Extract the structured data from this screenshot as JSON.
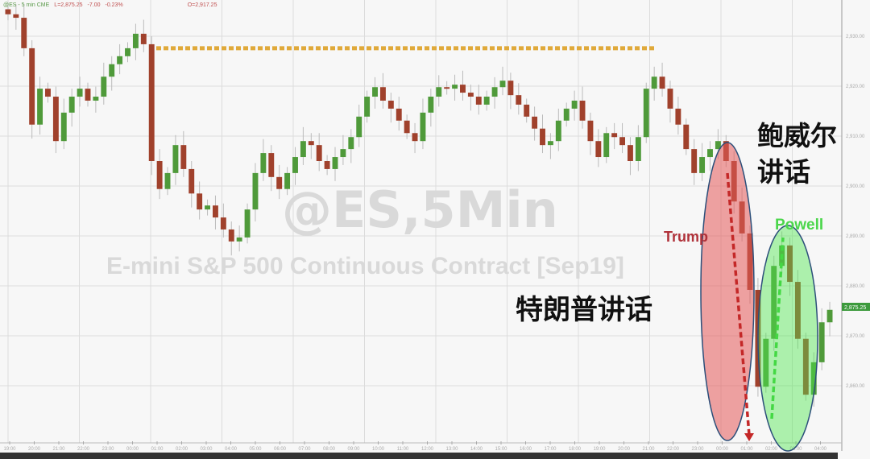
{
  "header": {
    "symbol": "@ES - 5 min CME",
    "last": "L=2,875.25",
    "change": "-7.00",
    "change_pct": "-0.23%",
    "open": "O=2,917.25"
  },
  "watermark": {
    "line1": "@ES,5Min",
    "line2": "E-mini S&P 500 Continuous Contract [Sep19]"
  },
  "annotations": {
    "trump_label": "Trump",
    "powell_label": "Powell",
    "trump_cn": "特朗普讲话",
    "powell_cn_line1": "鲍威尔",
    "powell_cn_line2": "讲话"
  },
  "colors": {
    "up": "#4f9a3a",
    "down": "#a0412c",
    "resistance": "#e0a93a",
    "trump": "#e05a5a",
    "powell": "#44d844",
    "last_label": "#3c9a3c"
  },
  "chart_data": {
    "type": "candlestick",
    "title": "@ES,5Min",
    "subtitle": "E-mini S&P 500 Continuous Contract [Sep19]",
    "y_ticks": [
      "2,930.00",
      "2,920.00",
      "2,910.00",
      "2,900.00",
      "2,890.00",
      "2,880.00",
      "2,870.00",
      "2,860.00"
    ],
    "ylim": [
      2854,
      2936
    ],
    "x_ticks": [
      "19:00",
      "20:00",
      "21:00",
      "22:00",
      "23:00",
      "00:00",
      "01:00",
      "02:00",
      "03:00",
      "04:00",
      "05:00",
      "06:00",
      "07:00",
      "08:00",
      "09:00",
      "10:00",
      "11:00",
      "12:00",
      "13:00",
      "14:00",
      "15:00",
      "16:00",
      "17:00",
      "18:00",
      "19:00",
      "20:00",
      "21:00",
      "22:00",
      "23:00",
      "00:00",
      "01:00",
      "02:00",
      "03:00",
      "04:00"
    ],
    "last_price_label": "2,875.25",
    "resistance_level": 2927.6,
    "grid": true,
    "closes": [
      2934.4,
      2933.7,
      2927.6,
      2912.3,
      2919.5,
      2917.9,
      2909.0,
      2914.7,
      2917.9,
      2919.5,
      2917.1,
      2917.9,
      2921.9,
      2924.4,
      2926.0,
      2927.6,
      2930.5,
      2928.4,
      2905.0,
      2899.4,
      2902.6,
      2908.2,
      2903.4,
      2898.5,
      2895.3,
      2896.1,
      2893.7,
      2891.3,
      2888.9,
      2889.7,
      2895.3,
      2902.6,
      2906.6,
      2901.8,
      2899.4,
      2902.6,
      2905.8,
      2909.0,
      2908.2,
      2905.0,
      2903.4,
      2905.8,
      2907.4,
      2909.8,
      2913.9,
      2917.9,
      2919.8,
      2917.1,
      2915.5,
      2913.1,
      2910.6,
      2909.0,
      2914.7,
      2917.9,
      2919.8,
      2919.5,
      2920.3,
      2918.7,
      2917.9,
      2916.3,
      2917.9,
      2919.8,
      2921.1,
      2918.2,
      2916.3,
      2913.9,
      2911.5,
      2908.2,
      2909.0,
      2913.1,
      2915.5,
      2917.1,
      2913.1,
      2909.0,
      2905.8,
      2910.6,
      2909.8,
      2908.2,
      2905.0,
      2909.8,
      2919.5,
      2921.9,
      2919.5,
      2915.5,
      2912.3,
      2907.4,
      2902.6,
      2905.8,
      2907.4,
      2909.0,
      2905.0,
      2896.9,
      2890.5,
      2879.2,
      2859.8,
      2869.4,
      2884.0,
      2888.1,
      2880.8,
      2869.4,
      2858.2,
      2864.7,
      2872.7,
      2875.2
    ]
  }
}
